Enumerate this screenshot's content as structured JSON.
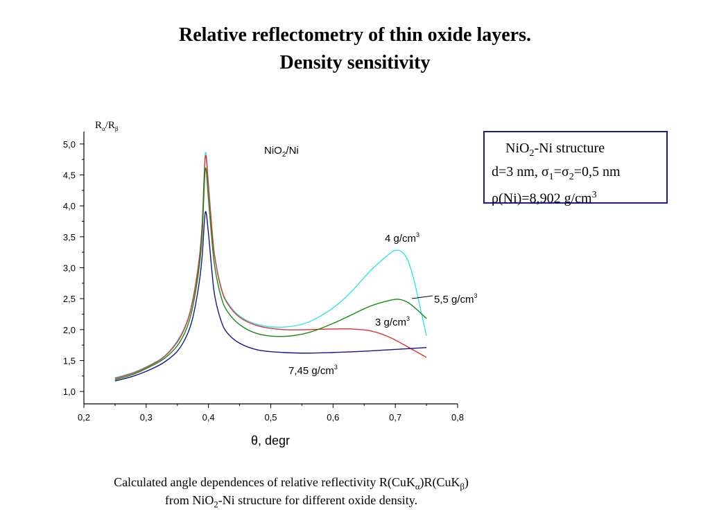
{
  "title_line1": "Relative reflectometry of thin oxide layers.",
  "title_line2": "Density sensitivity",
  "info_box": {
    "line1_prefix": "NiO",
    "line1_sub": "2",
    "line1_suffix": "-Ni structure",
    "line2_a": "d=3 nm, σ",
    "line2_sub1": "1",
    "line2_b": "=σ",
    "line2_sub2": "2",
    "line2_c": "=0,5 nm",
    "line3_a": "ρ(Ni)=8,902 g/cm",
    "line3_sup": "3"
  },
  "caption": {
    "line1_a": "Calculated angle dependences of relative reflectivity R(CuK",
    "line1_sub1": "α",
    "line1_b": ")R(CuK",
    "line1_sub2": "β",
    "line1_c": ")",
    "line2_a": "from NiO",
    "line2_sub": "2",
    "line2_b": "-Ni structure for different oxide density."
  },
  "chart_data": {
    "type": "line",
    "annotation": {
      "text": "NiO",
      "sub": "2",
      "suffix": "/Ni"
    },
    "ylabel": {
      "main": "R",
      "sub1": "α",
      "mid": "/R",
      "sub2": "β"
    },
    "xlabel": "θ, degr",
    "xlim": [
      0.2,
      0.8
    ],
    "ylim": [
      0.8,
      5.2
    ],
    "xticks": [
      "0,2",
      "0,3",
      "0,4",
      "0,5",
      "0,6",
      "0,7",
      "0,8"
    ],
    "xtick_values": [
      0.2,
      0.3,
      0.4,
      0.5,
      0.6,
      0.7,
      0.8
    ],
    "yticks": [
      "1,0",
      "1,5",
      "2,0",
      "2,5",
      "3,0",
      "3,5",
      "4,0",
      "4,5",
      "5,0"
    ],
    "ytick_values": [
      1.0,
      1.5,
      2.0,
      2.5,
      3.0,
      3.5,
      4.0,
      4.5,
      5.0
    ],
    "grid": false,
    "series": [
      {
        "name": "4 g/cm3",
        "label_text": "4 g/cm",
        "label_sup": "3",
        "color": "#33e6e6",
        "x": [
          0.25,
          0.28,
          0.31,
          0.33,
          0.35,
          0.365,
          0.375,
          0.385,
          0.39,
          0.395,
          0.4,
          0.405,
          0.41,
          0.42,
          0.43,
          0.45,
          0.48,
          0.52,
          0.56,
          0.6,
          0.63,
          0.66,
          0.69,
          0.7,
          0.71,
          0.72,
          0.73,
          0.74,
          0.75
        ],
        "y": [
          1.22,
          1.31,
          1.45,
          1.58,
          1.82,
          2.12,
          2.5,
          3.15,
          3.75,
          4.85,
          4.35,
          3.7,
          3.2,
          2.7,
          2.45,
          2.22,
          2.08,
          2.04,
          2.12,
          2.35,
          2.62,
          2.95,
          3.22,
          3.28,
          3.26,
          3.12,
          2.8,
          2.35,
          1.9
        ]
      },
      {
        "name": "3 g/cm3",
        "label_text": "3 g/cm",
        "label_sup": "3",
        "color": "#e03030",
        "x": [
          0.25,
          0.28,
          0.31,
          0.33,
          0.35,
          0.365,
          0.375,
          0.385,
          0.39,
          0.395,
          0.4,
          0.405,
          0.41,
          0.42,
          0.43,
          0.45,
          0.48,
          0.52,
          0.56,
          0.6,
          0.63,
          0.66,
          0.69,
          0.72,
          0.75
        ],
        "y": [
          1.21,
          1.3,
          1.44,
          1.57,
          1.8,
          2.1,
          2.48,
          3.12,
          3.72,
          4.8,
          4.32,
          3.68,
          3.18,
          2.68,
          2.43,
          2.2,
          2.06,
          2.0,
          2.0,
          2.01,
          2.01,
          1.98,
          1.88,
          1.72,
          1.55
        ]
      },
      {
        "name": "5,5 g/cm3",
        "label_text": "5,5 g/cm",
        "label_sup": "3",
        "color": "#138a13",
        "x": [
          0.25,
          0.28,
          0.31,
          0.33,
          0.35,
          0.365,
          0.375,
          0.385,
          0.39,
          0.395,
          0.4,
          0.405,
          0.41,
          0.42,
          0.43,
          0.45,
          0.48,
          0.52,
          0.56,
          0.6,
          0.63,
          0.66,
          0.69,
          0.705,
          0.72,
          0.735,
          0.75
        ],
        "y": [
          1.19,
          1.28,
          1.42,
          1.54,
          1.74,
          2.02,
          2.38,
          3.0,
          3.55,
          4.6,
          4.1,
          3.5,
          3.02,
          2.54,
          2.3,
          2.08,
          1.93,
          1.89,
          1.95,
          2.1,
          2.24,
          2.38,
          2.47,
          2.49,
          2.44,
          2.32,
          2.18
        ]
      },
      {
        "name": "7,45 g/cm3",
        "label_text": "7,45 g/cm",
        "label_sup": "3",
        "color": "#14148c",
        "x": [
          0.25,
          0.28,
          0.31,
          0.33,
          0.35,
          0.365,
          0.375,
          0.385,
          0.39,
          0.395,
          0.4,
          0.405,
          0.41,
          0.42,
          0.43,
          0.45,
          0.48,
          0.52,
          0.56,
          0.6,
          0.65,
          0.7,
          0.75
        ],
        "y": [
          1.17,
          1.25,
          1.37,
          1.48,
          1.65,
          1.9,
          2.2,
          2.75,
          3.2,
          3.9,
          3.55,
          3.0,
          2.55,
          2.15,
          1.95,
          1.78,
          1.67,
          1.63,
          1.62,
          1.63,
          1.65,
          1.68,
          1.71
        ]
      }
    ]
  }
}
